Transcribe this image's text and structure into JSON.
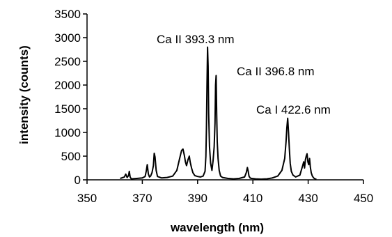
{
  "chart_data": {
    "type": "line",
    "title": "",
    "xlabel": "wavelength (nm)",
    "ylabel": "intensity (counts)",
    "xlim": [
      350,
      450
    ],
    "ylim": [
      0,
      3500
    ],
    "x_ticks": [
      350,
      370,
      390,
      410,
      430,
      450
    ],
    "y_ticks": [
      0,
      500,
      1000,
      1500,
      2000,
      2500,
      3000,
      3500
    ],
    "grid": false,
    "legend": "none",
    "line_color": "#000000",
    "series": [
      {
        "x": [
          362,
          363.5,
          364,
          364.5,
          365,
          365.3,
          365.6,
          366,
          368,
          370,
          371,
          371.4,
          371.8,
          372.2,
          372.6,
          373,
          373.5,
          374,
          374.3,
          374.6,
          375,
          375.5,
          377,
          379,
          381,
          382.5,
          383.5,
          384.2,
          384.7,
          385.2,
          385.6,
          386,
          386.5,
          387,
          387.3,
          387.8,
          388.3,
          389,
          390,
          391,
          392,
          392.7,
          393,
          393.2,
          393.4,
          393.6,
          393.8,
          394,
          394.3,
          394.7,
          395.2,
          395.6,
          396,
          396.3,
          396.5,
          396.7,
          396.9,
          397.1,
          397.4,
          397.8,
          398.3,
          399,
          401,
          403,
          405,
          407,
          407.6,
          408,
          408.3,
          408.6,
          409,
          409.5,
          411,
          413,
          415,
          417,
          419,
          420.5,
          421.5,
          422,
          422.3,
          422.6,
          422.9,
          423.2,
          423.5,
          423.9,
          424.5,
          425.5,
          427,
          428,
          428.4,
          428.7,
          429,
          429.3,
          429.6,
          429.9,
          430.2,
          430.5,
          430.8,
          431.1,
          431.5,
          432,
          432.5,
          433
        ],
        "y": [
          30,
          60,
          120,
          50,
          90,
          180,
          60,
          20,
          30,
          40,
          70,
          180,
          320,
          120,
          60,
          80,
          150,
          300,
          560,
          480,
          200,
          70,
          40,
          50,
          80,
          200,
          450,
          620,
          650,
          520,
          380,
          300,
          420,
          500,
          380,
          250,
          150,
          90,
          70,
          60,
          80,
          180,
          500,
          1100,
          2000,
          2800,
          2400,
          1400,
          700,
          350,
          200,
          400,
          700,
          1200,
          2000,
          2200,
          1400,
          800,
          450,
          200,
          80,
          50,
          30,
          20,
          30,
          60,
          150,
          260,
          180,
          80,
          40,
          30,
          20,
          15,
          20,
          40,
          80,
          200,
          450,
          800,
          1100,
          1300,
          1000,
          650,
          350,
          180,
          100,
          60,
          100,
          300,
          380,
          250,
          420,
          500,
          550,
          380,
          320,
          450,
          260,
          150,
          80,
          40,
          20,
          10
        ]
      }
    ],
    "annotations": [
      {
        "text": "Ca II  393.3 nm"
      },
      {
        "text": "Ca II 396.8 nm"
      },
      {
        "text": "Ca I  422.6 nm"
      }
    ]
  }
}
